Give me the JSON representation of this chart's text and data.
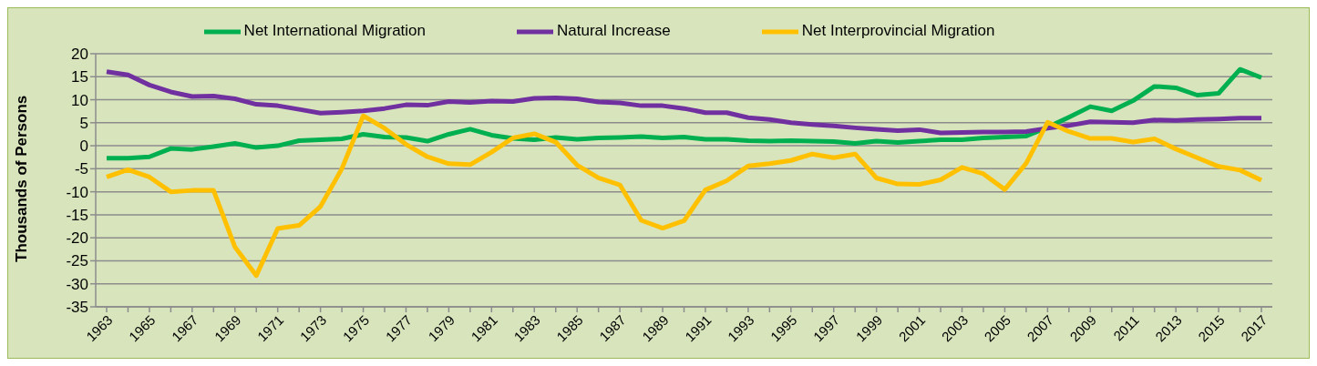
{
  "chart_data": {
    "type": "line",
    "ylabel": "Thousands of Persons",
    "categories": [
      "1963",
      null,
      "1965",
      null,
      "1967",
      null,
      "1969",
      null,
      "1971",
      null,
      "1973",
      null,
      "1975",
      null,
      "1977",
      null,
      "1979",
      null,
      "1981",
      null,
      "1983",
      null,
      "1985",
      null,
      "1987",
      null,
      "1989",
      null,
      "1991",
      null,
      "1993",
      null,
      "1995",
      null,
      "1997",
      null,
      "1999",
      null,
      "2001",
      null,
      "2003",
      null,
      "2005",
      null,
      "2007",
      null,
      "2009",
      null,
      "2011",
      null,
      "2013",
      null,
      "2015",
      null,
      "2017"
    ],
    "series": [
      {
        "name": "Net International Migration",
        "color": "#00b050",
        "values": [
          -2.7,
          -2.7,
          -2.4,
          -0.6,
          -0.8,
          -0.2,
          0.5,
          -0.4,
          0,
          1.1,
          1.3,
          1.5,
          2.5,
          1.9,
          1.8,
          1.0,
          2.5,
          3.6,
          2.3,
          1.6,
          1.3,
          1.8,
          1.4,
          1.7,
          1.8,
          2.0,
          1.7,
          1.9,
          1.4,
          1.4,
          1.1,
          1.0,
          1.1,
          1.0,
          0.9,
          0.5,
          1.0,
          0.7,
          1.0,
          1.3,
          1.3,
          1.7,
          1.9,
          2.1,
          4.0,
          6.2,
          8.5,
          7.6,
          9.8,
          12.9,
          12.6,
          11.0,
          11.4,
          16.6,
          14.8
        ]
      },
      {
        "name": "Natural Increase",
        "color": "#7030a0",
        "values": [
          16.1,
          15.4,
          13.2,
          11.7,
          10.7,
          10.8,
          10.2,
          9.0,
          8.7,
          7.9,
          7.1,
          7.3,
          7.6,
          8.1,
          8.9,
          8.8,
          9.6,
          9.4,
          9.7,
          9.6,
          10.3,
          10.4,
          10.2,
          9.5,
          9.3,
          8.7,
          8.7,
          8.1,
          7.2,
          7.2,
          6.1,
          5.7,
          5.0,
          4.6,
          4.3,
          3.9,
          3.6,
          3.3,
          3.5,
          2.8,
          2.9,
          3.0,
          3.0,
          3.1,
          3.8,
          4.4,
          5.2,
          5.1,
          5.0,
          5.6,
          5.5,
          5.7,
          5.8,
          6.0,
          6.0
        ]
      },
      {
        "name": "Net Interprovincial Migration",
        "color": "#ffc000",
        "values": [
          -6.8,
          -5.2,
          -6.8,
          -10.0,
          -9.7,
          -9.7,
          -22,
          -28.2,
          -18.0,
          -17.3,
          -13.2,
          -5.0,
          6.5,
          3.8,
          0.3,
          -2.4,
          -3.9,
          -4.1,
          -1.4,
          1.7,
          2.6,
          0.8,
          -4.2,
          -7.0,
          -8.5,
          -16.2,
          -17.9,
          -16.3,
          -9.6,
          -7.6,
          -4.4,
          -3.9,
          -3.2,
          -1.8,
          -2.6,
          -1.8,
          -7.0,
          -8.3,
          -8.4,
          -7.4,
          -4.7,
          -6.1,
          -9.5,
          -3.8,
          5.1,
          3.1,
          1.6,
          1.6,
          0.8,
          1.5,
          -0.7,
          -2.6,
          -4.5,
          -5.3,
          -7.5
        ]
      }
    ],
    "ylim": [
      -35,
      20
    ],
    "yticks": [
      -35,
      -30,
      -25,
      -20,
      -15,
      -10,
      -5,
      0,
      5,
      10,
      15,
      20
    ],
    "grid": "y",
    "legend": "top",
    "marker": "none",
    "line_style": "solid"
  }
}
